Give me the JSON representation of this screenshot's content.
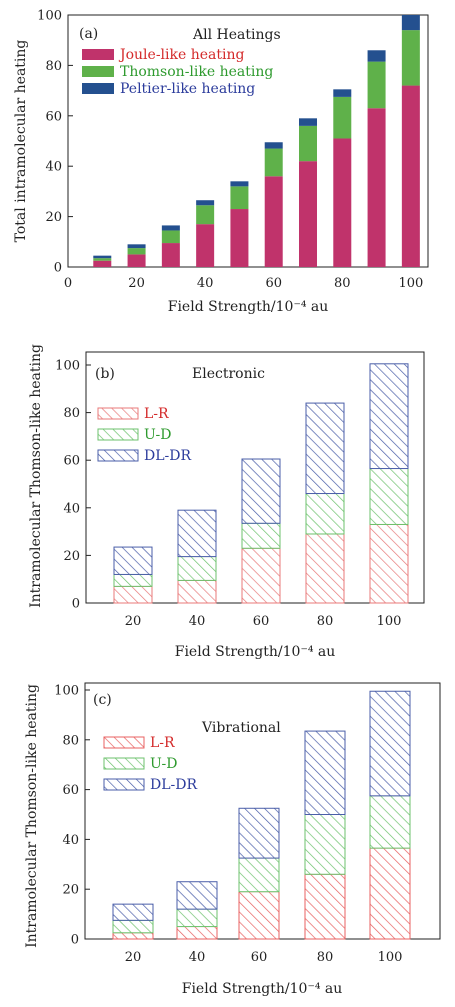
{
  "chart_data": [
    {
      "type": "bar",
      "stacked": true,
      "panel_label": "(a)",
      "title": "All Heatings",
      "xlabel": "Field Strength/10⁻⁴ au",
      "ylabel": "Total intramolecular heating",
      "xlim": [
        0,
        105
      ],
      "ylim": [
        0,
        100
      ],
      "xticks": [
        0,
        20,
        40,
        60,
        80,
        100
      ],
      "yticks": [
        0,
        20,
        40,
        60,
        80,
        100
      ],
      "x": [
        10,
        20,
        30,
        40,
        50,
        60,
        70,
        80,
        90,
        100
      ],
      "series": [
        {
          "name": "Joule-like heating",
          "values": [
            2.5,
            5,
            9.5,
            17,
            23,
            36,
            42,
            51,
            63,
            72
          ],
          "color": "#c0336b",
          "text_color": "#d42a2a",
          "pattern": "solid"
        },
        {
          "name": "Thomson-like heating",
          "values": [
            1,
            2.5,
            5,
            7.5,
            9,
            11,
            14,
            16.5,
            18.5,
            22
          ],
          "color": "#5fb14a",
          "text_color": "#2e9a2e",
          "pattern": "solid"
        },
        {
          "name": "Peltier-like heating",
          "values": [
            1,
            1.5,
            2,
            2,
            2,
            2.5,
            3,
            3,
            4.5,
            6
          ],
          "color": "#24508f",
          "text_color": "#2c3c9c",
          "pattern": "solid"
        }
      ]
    },
    {
      "type": "bar",
      "stacked": true,
      "panel_label": "(b)",
      "title": "Electronic",
      "xlabel": "Field Strength/10⁻⁴ au",
      "ylabel": "Intramolecular Thomson-like heating",
      "ylim": [
        0,
        100
      ],
      "yticks": [
        0,
        20,
        40,
        60,
        80,
        100
      ],
      "categories": [
        "20",
        "40",
        "60",
        "80",
        "100"
      ],
      "series": [
        {
          "name": "L-R",
          "values": [
            7,
            9.5,
            23,
            29,
            33
          ],
          "color": "#e87a7a",
          "text_color": "#d42a2a",
          "pattern": "hatch"
        },
        {
          "name": "U-D",
          "values": [
            5,
            10,
            10.5,
            17,
            23.5
          ],
          "color": "#6cc26c",
          "text_color": "#2e9a2e",
          "pattern": "hatch"
        },
        {
          "name": "DL-DR",
          "values": [
            11.5,
            19.5,
            27,
            38,
            44
          ],
          "color": "#4a5ea8",
          "text_color": "#2c3c9c",
          "pattern": "hatch"
        }
      ]
    },
    {
      "type": "bar",
      "stacked": true,
      "panel_label": "(c)",
      "title": "Vibrational",
      "xlabel": "Field Strength/10⁻⁴ au",
      "ylabel": "Intramolecular Thomson-like heating",
      "ylim": [
        0,
        100
      ],
      "yticks": [
        0,
        20,
        40,
        60,
        80,
        100
      ],
      "categories": [
        "20",
        "40",
        "60",
        "80",
        "100"
      ],
      "series": [
        {
          "name": "L-R",
          "values": [
            2.5,
            5,
            19,
            26,
            36.5
          ],
          "color": "#e86060",
          "text_color": "#d42a2a",
          "pattern": "hatch"
        },
        {
          "name": "U-D",
          "values": [
            5,
            7,
            13.5,
            24,
            21
          ],
          "color": "#6cc26c",
          "text_color": "#2e9a2e",
          "pattern": "hatch"
        },
        {
          "name": "DL-DR",
          "values": [
            6.5,
            11,
            20,
            33.5,
            42
          ],
          "color": "#4a5ea8",
          "text_color": "#2c3c9c",
          "pattern": "hatch"
        }
      ]
    }
  ]
}
